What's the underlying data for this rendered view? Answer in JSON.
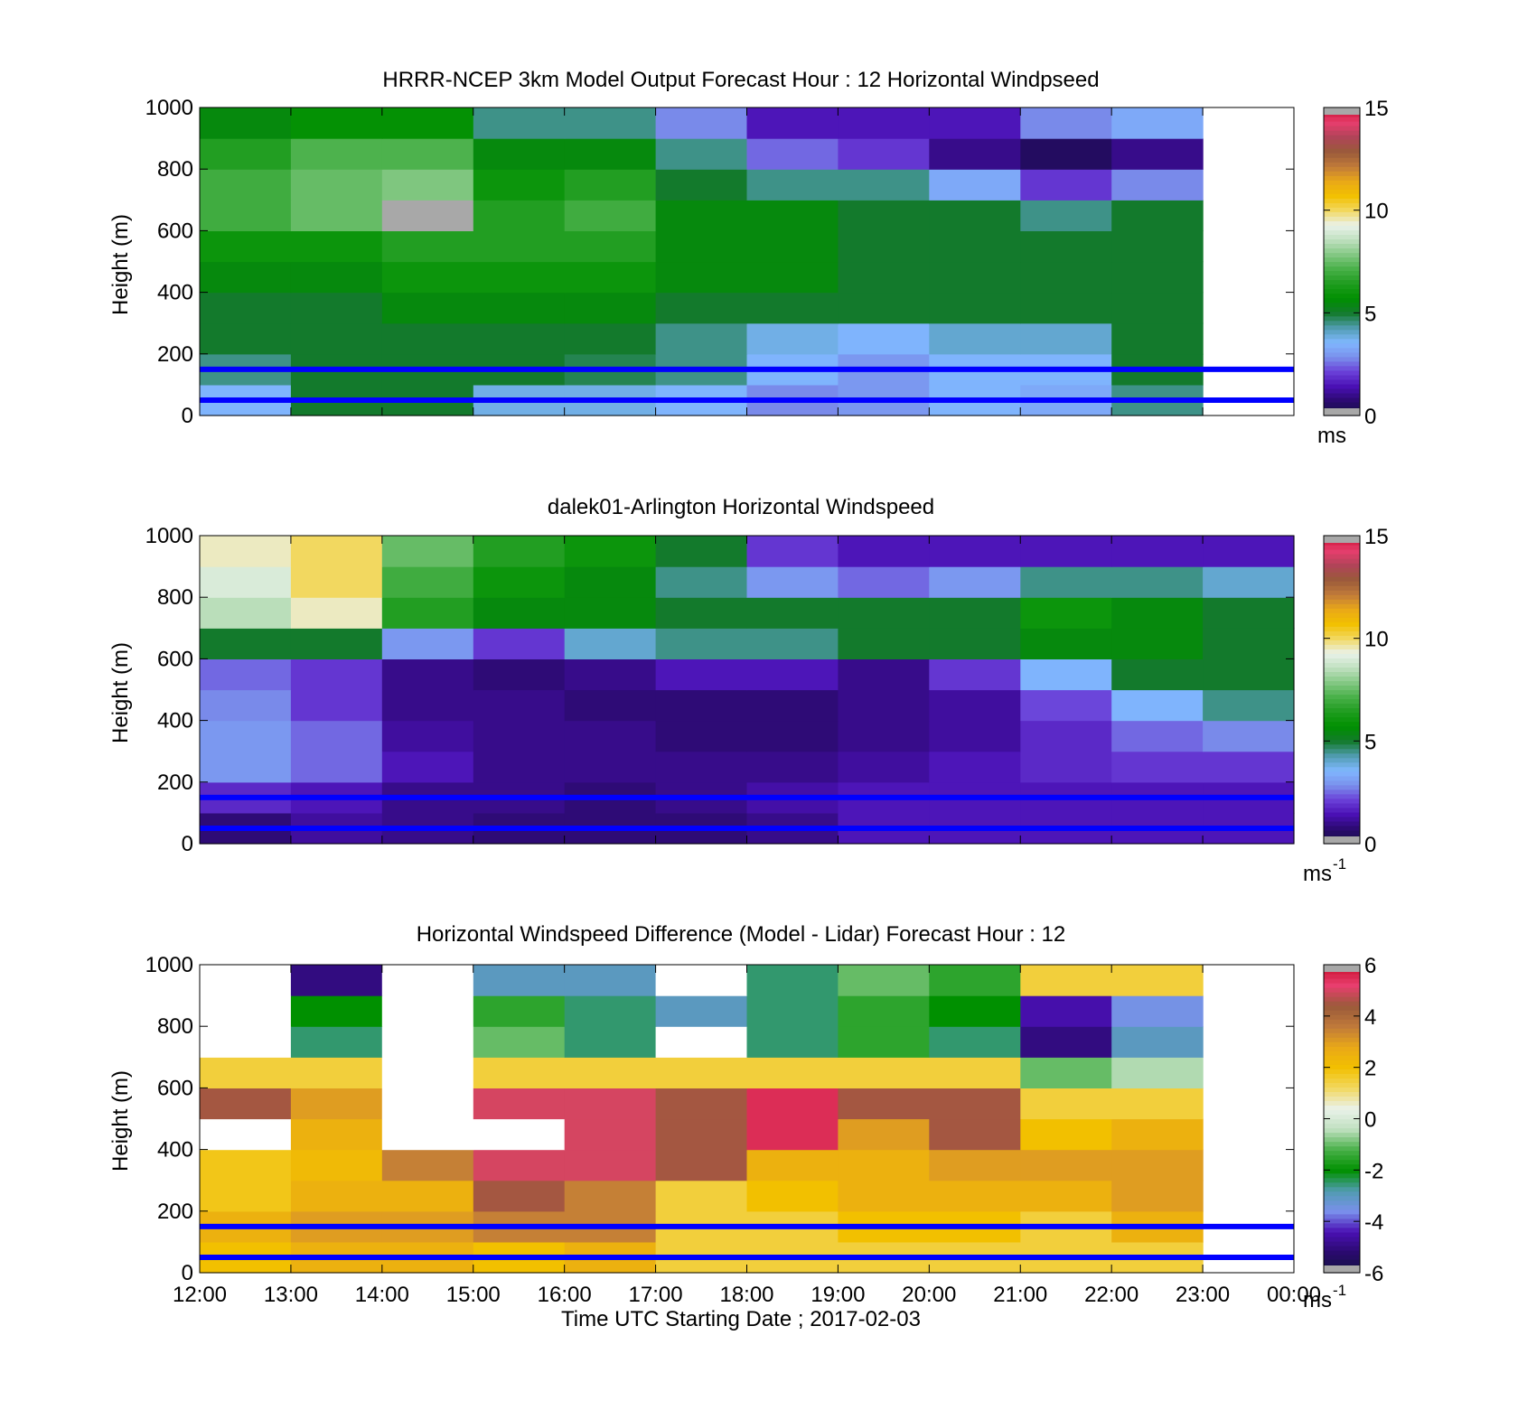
{
  "colors": {
    "speed_scale": [
      "#121240",
      "#2a0a6e",
      "#4a10b4",
      "#6a40d8",
      "#7a90ec",
      "#80b8ff",
      "#509cb0",
      "#137a2c",
      "#009000",
      "#1e9c1e",
      "#48b048",
      "#84c884",
      "#c0e0c0",
      "#eaf2ea",
      "#f2d860",
      "#f2c000",
      "#e9a818",
      "#c07a3a",
      "#9a5a3a",
      "#b04458",
      "#e83e6e",
      "#c8102e"
    ],
    "diff_scale": [
      "#121240",
      "#2a0a6e",
      "#4a10b4",
      "#7a90ec",
      "#509cb0",
      "#009000",
      "#48b048",
      "#c0e0c0",
      "#eaf2ea",
      "#f2d860",
      "#f2c000",
      "#e9a818",
      "#c07a3a",
      "#9a5a3a",
      "#e83e6e",
      "#c8102e"
    ],
    "band_line": "#0000ff",
    "missing_gray": "#a8a8a8",
    "no_data": "#ffffff"
  },
  "chart_data": [
    {
      "type": "heatmap",
      "panel": "model",
      "title": "HRRR-NCEP 3km Model Output   Forecast Hour : 12 Horizontal Windpseed",
      "ylabel": "Height (m)",
      "xlabel": "",
      "ylim": [
        0,
        1000
      ],
      "yticks": [
        0,
        200,
        400,
        600,
        800,
        1000
      ],
      "x_hours": [
        12,
        13,
        14,
        15,
        16,
        17,
        18,
        19,
        20,
        21,
        22,
        23,
        24
      ],
      "heights": [
        50,
        150,
        250,
        350,
        450,
        550,
        650,
        750,
        850,
        950
      ],
      "values": [
        [
          3.5,
          5.0,
          5.0,
          3.8,
          3.8,
          3.5,
          2.8,
          3.0,
          3.5,
          3.3,
          4.5
        ],
        [
          4.5,
          5.0,
          5.0,
          5.0,
          4.8,
          4.5,
          3.5,
          3.0,
          3.5,
          3.5,
          5.0
        ],
        [
          5.0,
          5.0,
          5.0,
          5.0,
          5.0,
          4.5,
          3.8,
          3.5,
          4.0,
          4.0,
          5.0
        ],
        [
          5.0,
          5.0,
          5.5,
          5.5,
          5.5,
          5.0,
          5.0,
          5.0,
          5.0,
          5.0,
          5.0
        ],
        [
          5.5,
          5.5,
          6.0,
          6.0,
          6.0,
          5.5,
          5.5,
          5.0,
          5.0,
          5.0,
          5.0
        ],
        [
          6.0,
          6.0,
          6.5,
          6.5,
          6.5,
          5.5,
          5.5,
          5.0,
          5.0,
          5.0,
          5.0
        ],
        [
          7.0,
          7.5,
          null,
          6.5,
          7.0,
          5.5,
          5.5,
          5.0,
          5.0,
          4.5,
          5.0
        ],
        [
          7.0,
          7.5,
          7.8,
          6.0,
          6.5,
          5.0,
          4.5,
          4.5,
          3.3,
          2.0,
          2.8
        ],
        [
          6.5,
          7.2,
          7.2,
          5.5,
          5.5,
          4.5,
          2.5,
          2.0,
          1.0,
          0.5,
          1.0
        ],
        [
          5.5,
          5.8,
          5.8,
          4.5,
          4.5,
          2.8,
          1.5,
          1.5,
          1.5,
          2.8,
          3.3
        ]
      ],
      "reference_heights": [
        50,
        150
      ],
      "colorbar": {
        "min": 0,
        "max": 15,
        "ticks": [
          0,
          5,
          10,
          15
        ],
        "unit": "ms"
      }
    },
    {
      "type": "heatmap",
      "panel": "lidar",
      "title": "dalek01-Arlington  Horizontal Windspeed",
      "ylabel": "Height (m)",
      "xlabel": "",
      "ylim": [
        0,
        1000
      ],
      "yticks": [
        0,
        200,
        400,
        600,
        800,
        1000
      ],
      "x_hours": [
        12,
        13,
        14,
        15,
        16,
        17,
        18,
        19,
        20,
        21,
        22,
        23,
        24
      ],
      "heights": [
        50,
        150,
        250,
        350,
        450,
        550,
        650,
        750,
        850,
        950
      ],
      "values": [
        [
          0.8,
          1.2,
          1.0,
          0.8,
          0.8,
          0.8,
          1.0,
          1.5,
          1.5,
          1.5,
          1.5,
          1.5
        ],
        [
          1.8,
          1.5,
          1.0,
          1.0,
          0.8,
          1.0,
          1.3,
          1.5,
          1.5,
          1.5,
          1.5,
          1.5
        ],
        [
          3.0,
          2.5,
          1.5,
          1.0,
          1.0,
          1.0,
          1.0,
          1.2,
          1.5,
          1.8,
          2.0,
          2.0
        ],
        [
          3.0,
          2.5,
          1.2,
          1.0,
          1.0,
          0.8,
          0.8,
          1.0,
          1.2,
          1.8,
          2.5,
          2.8
        ],
        [
          2.8,
          2.0,
          1.0,
          1.0,
          0.8,
          0.8,
          0.8,
          1.0,
          1.2,
          2.2,
          3.5,
          4.5
        ],
        [
          2.5,
          2.0,
          1.0,
          0.8,
          1.0,
          1.5,
          1.5,
          1.0,
          2.0,
          3.5,
          5.0,
          5.0
        ],
        [
          5.0,
          5.0,
          3.0,
          2.0,
          4.0,
          4.5,
          4.5,
          5.0,
          5.0,
          5.5,
          5.5,
          5.0
        ],
        [
          8.5,
          9.5,
          6.5,
          5.5,
          5.5,
          5.0,
          5.0,
          5.0,
          5.0,
          6.0,
          5.5,
          5.0
        ],
        [
          9.0,
          10.0,
          7.0,
          6.0,
          5.5,
          4.5,
          3.0,
          2.5,
          3.0,
          4.5,
          4.5,
          4.0
        ],
        [
          9.5,
          10.0,
          7.5,
          6.5,
          6.0,
          5.0,
          2.0,
          1.5,
          1.5,
          1.5,
          1.5,
          1.5
        ]
      ],
      "reference_heights": [
        50,
        150
      ],
      "colorbar": {
        "min": 0,
        "max": 15,
        "ticks": [
          0,
          5,
          10,
          15
        ],
        "unit": "ms",
        "unit_exp": "-1"
      }
    },
    {
      "type": "heatmap",
      "panel": "difference",
      "title": "Horizontal Windspeed Difference (Model - Lidar) Forecast Hour : 12",
      "ylabel": "Height (m)",
      "xlabel": "Time UTC  Starting Date ; 2017-02-03",
      "ylim": [
        0,
        1000
      ],
      "yticks": [
        0,
        200,
        400,
        600,
        800,
        1000
      ],
      "xticklabels": [
        "12:00",
        "13:00",
        "14:00",
        "15:00",
        "16:00",
        "17:00",
        "18:00",
        "19:00",
        "20:00",
        "21:00",
        "22:00",
        "23:00",
        "00:00"
      ],
      "x_hours": [
        12,
        13,
        14,
        15,
        16,
        17,
        18,
        19,
        20,
        21,
        22,
        23,
        24
      ],
      "heights": [
        50,
        150,
        250,
        350,
        450,
        550,
        650,
        750,
        850,
        950
      ],
      "values": [
        [
          2.0,
          2.5,
          2.5,
          2.0,
          2.5,
          1.5,
          1.5,
          1.5,
          1.5,
          1.5,
          1.5
        ],
        [
          2.5,
          3.0,
          3.0,
          3.5,
          3.5,
          1.5,
          1.5,
          2.0,
          2.0,
          1.5,
          2.5
        ],
        [
          1.8,
          2.5,
          2.5,
          4.5,
          3.5,
          1.5,
          2.0,
          2.5,
          2.5,
          2.5,
          3.0
        ],
        [
          1.8,
          2.2,
          3.5,
          5.0,
          5.0,
          4.5,
          2.5,
          2.5,
          3.0,
          3.0,
          3.0
        ],
        [
          null,
          2.5,
          null,
          null,
          5.0,
          4.5,
          5.5,
          3.0,
          4.5,
          2.0,
          2.5
        ],
        [
          4.5,
          3.0,
          null,
          5.0,
          5.0,
          4.5,
          5.5,
          4.5,
          4.5,
          1.5,
          1.5
        ],
        [
          1.5,
          1.5,
          null,
          1.5,
          1.5,
          1.5,
          1.5,
          1.5,
          1.5,
          -1.0,
          -0.5
        ],
        [
          null,
          -2.5,
          null,
          -1.0,
          -2.5,
          null,
          -2.5,
          -1.5,
          -2.5,
          -5.0,
          -3.0
        ],
        [
          null,
          -2.0,
          null,
          -1.5,
          -2.5,
          -3.0,
          -2.5,
          -1.5,
          -2.0,
          -4.5,
          -3.5
        ],
        [
          null,
          -5.0,
          null,
          -3.0,
          -3.0,
          null,
          -2.5,
          -1.0,
          -1.5,
          1.5,
          1.5
        ]
      ],
      "reference_heights": [
        50,
        150
      ],
      "colorbar": {
        "min": -6,
        "max": 6,
        "ticks": [
          -6,
          -4,
          -2,
          0,
          2,
          4,
          6
        ],
        "unit": "ms",
        "unit_exp": "-1"
      }
    }
  ]
}
